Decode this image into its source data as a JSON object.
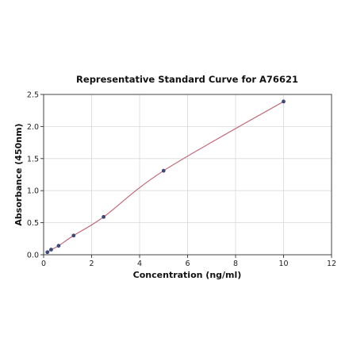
{
  "chart_data": {
    "type": "scatter",
    "title": "Representative Standard Curve for A76621",
    "xlabel": "Concentration (ng/ml)",
    "ylabel": "Absorbance (450nm)",
    "xlim": [
      0,
      12
    ],
    "ylim": [
      0,
      2.5
    ],
    "x_ticks": [
      "0",
      "2",
      "4",
      "6",
      "8",
      "10",
      "12"
    ],
    "y_ticks": [
      "0.0",
      "0.5",
      "1.0",
      "1.5",
      "2.0",
      "2.5"
    ],
    "grid": true,
    "series": [
      {
        "points": [
          {
            "x": 0.156,
            "y": 0.04
          },
          {
            "x": 0.313,
            "y": 0.08
          },
          {
            "x": 0.625,
            "y": 0.14
          },
          {
            "x": 1.25,
            "y": 0.3
          },
          {
            "x": 2.5,
            "y": 0.59
          },
          {
            "x": 5.0,
            "y": 1.31
          },
          {
            "x": 10.0,
            "y": 2.39
          }
        ],
        "marker_color": "#3b4a7a",
        "fit_color": "#c06070"
      }
    ]
  }
}
